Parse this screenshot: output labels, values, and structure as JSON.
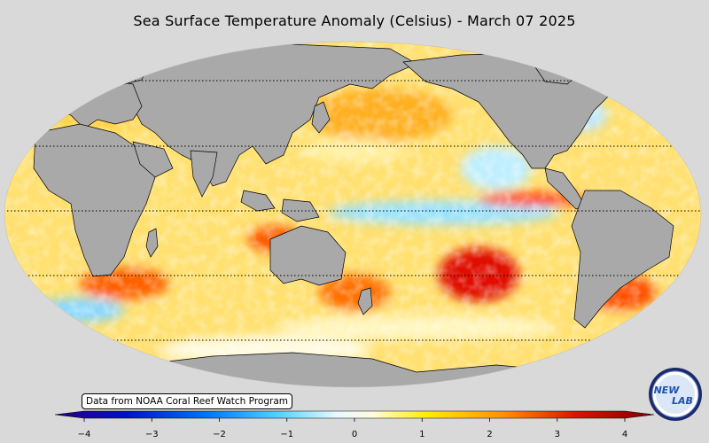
{
  "title": "Sea Surface Temperature Anomaly (Celsius) - March 07 2025",
  "credit": "Data from NOAA Coral Reef Watch Program",
  "colorbar": {
    "ticks": [
      "−4",
      "−3",
      "−2",
      "−1",
      "0",
      "1",
      "2",
      "3",
      "4"
    ],
    "min": -4,
    "max": 4
  },
  "logo": {
    "text_top": "NEW",
    "text_bottom": "LAB"
  },
  "colors": {
    "land": "#a9a9a9",
    "background": "#d9d9d9",
    "neutral": "#ffffff",
    "warm": "#ff9a00",
    "hot": "#c00000",
    "cool": "#6fd0ff",
    "cold": "#0040c0"
  }
}
